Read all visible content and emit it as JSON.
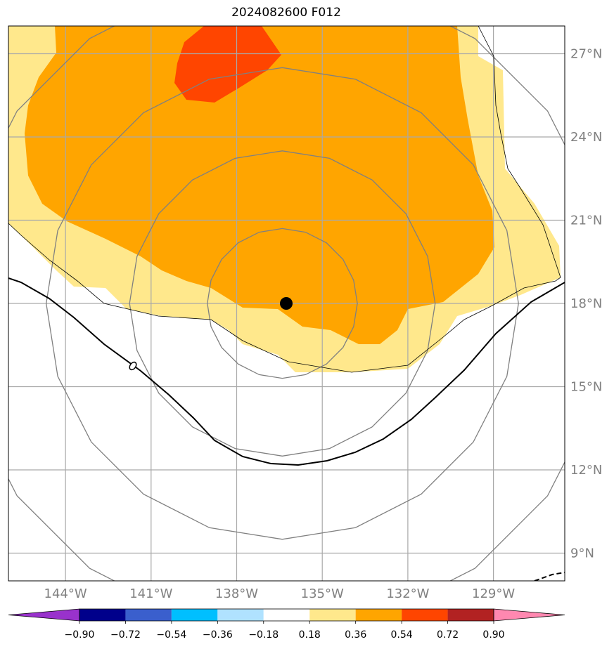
{
  "title": "2024082600 F012",
  "map": {
    "lon_range": [
      -146,
      -126.5
    ],
    "lat_range": [
      8,
      28
    ],
    "lat_labels": [
      "9°N",
      "12°N",
      "15°N",
      "18°N",
      "21°N",
      "24°N",
      "27°N"
    ],
    "lat_values": [
      9,
      12,
      15,
      18,
      21,
      24,
      27
    ],
    "lon_labels": [
      "144°W",
      "141°W",
      "138°W",
      "135°W",
      "132°W",
      "129°W"
    ],
    "lon_values": [
      -144,
      -141,
      -138,
      -135,
      -132,
      -129
    ],
    "center_marker": {
      "lon": -136.4,
      "lat": 18.0
    },
    "range_rings_deg": [
      2.7,
      5.5,
      8.5,
      11.8
    ],
    "colors": {
      "light_yellow": "#ffe88c",
      "orange": "#ffa500",
      "red_orange": "#ff4500",
      "grid": "#a9a9a9",
      "ring": "#808080"
    },
    "contour_label": "0"
  },
  "colorbar": {
    "ticks": [
      "−0.90",
      "−0.72",
      "−0.54",
      "−0.36",
      "−0.18",
      "0.18",
      "0.36",
      "0.54",
      "0.72",
      "0.90"
    ],
    "colors": [
      "#9932cc",
      "#00008b",
      "#3a5fcd",
      "#00bfff",
      "#b0e2ff",
      "#ffffff",
      "#ffe88c",
      "#ffa500",
      "#ff4500",
      "#b22222",
      "#ff88b0"
    ]
  }
}
